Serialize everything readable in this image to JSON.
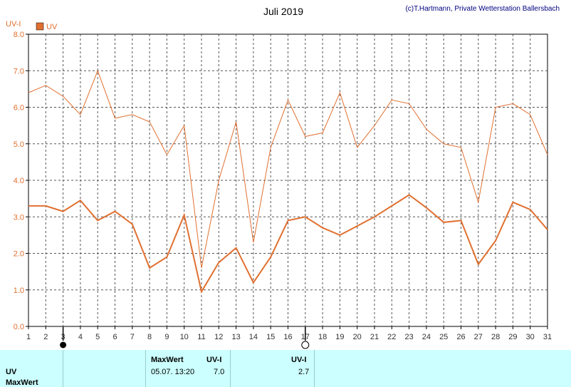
{
  "chart_data": {
    "type": "line",
    "title": "Juli 2019",
    "credit": "(c)T.Hartmann, Private Wetterstation Ballersbach",
    "ylabel": "UV-I",
    "ylim": [
      0,
      8
    ],
    "yticks": [
      "0.0",
      "1.0",
      "2.0",
      "3.0",
      "4.0",
      "5.0",
      "6.0",
      "7.0",
      "8.0"
    ],
    "x": [
      1,
      2,
      3,
      4,
      5,
      6,
      7,
      8,
      9,
      10,
      11,
      12,
      13,
      14,
      15,
      16,
      17,
      18,
      19,
      20,
      21,
      22,
      23,
      24,
      25,
      26,
      27,
      28,
      29,
      30,
      31
    ],
    "legend": [
      {
        "label": "UV",
        "color": "#e07030"
      }
    ],
    "series": [
      {
        "role": "max",
        "color": "#e07030",
        "values": [
          6.4,
          6.6,
          6.3,
          5.8,
          7.0,
          5.7,
          5.8,
          5.6,
          4.7,
          5.5,
          1.6,
          4.0,
          5.6,
          2.3,
          4.9,
          6.2,
          5.2,
          5.3,
          6.4,
          4.9,
          5.5,
          6.2,
          6.1,
          5.4,
          5.0,
          4.9,
          3.4,
          6.0,
          6.1,
          5.8,
          4.7
        ]
      },
      {
        "role": "mean",
        "color": "#e07030",
        "values": [
          3.3,
          3.3,
          3.15,
          3.45,
          2.9,
          3.15,
          2.8,
          1.6,
          1.9,
          3.05,
          0.95,
          1.75,
          2.15,
          1.2,
          1.9,
          2.9,
          3.0,
          2.7,
          2.5,
          2.75,
          3.0,
          3.3,
          3.6,
          3.25,
          2.85,
          2.9,
          1.7,
          2.35,
          3.4,
          3.2,
          2.65
        ]
      }
    ],
    "markers": [
      {
        "x": 3,
        "type": "filled"
      },
      {
        "x": 17,
        "type": "open"
      }
    ]
  },
  "footer": {
    "row1_label": "UV",
    "row2_label": "MaxWert",
    "col2_header": "MaxWert",
    "col2_unit": "UV-I",
    "col2_date": "05.07.  13:20",
    "col2_value": "7.0",
    "col3_unit": "UV-I",
    "col3_value": "2.7"
  }
}
